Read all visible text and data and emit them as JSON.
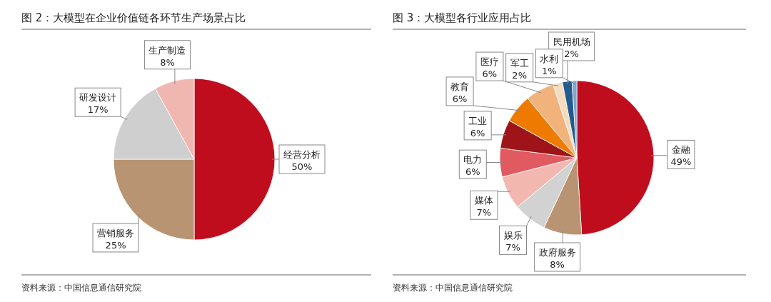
{
  "chart_data": [
    {
      "type": "pie",
      "title": "图 2：大模型在企业价值链各环节生产场景占比",
      "categories": [
        "经营分析",
        "营销服务",
        "研发设计",
        "生产制造"
      ],
      "values": [
        50,
        25,
        17,
        8
      ],
      "value_labels": [
        "50%",
        "25%",
        "17%",
        "8%"
      ],
      "colors": [
        "#c00d1e",
        "#b89472",
        "#cfcfcf",
        "#f0b7b0"
      ],
      "annotations": [
        "资料来源：中国信息通信研究院"
      ]
    },
    {
      "type": "pie",
      "title": "图 3：大模型各行业应用占比",
      "categories": [
        "金融",
        "政府服务",
        "娱乐",
        "媒体",
        "电力",
        "工业",
        "教育",
        "医疗",
        "军工",
        "民用机场",
        "水利"
      ],
      "values": [
        49,
        8,
        7,
        7,
        6,
        6,
        6,
        6,
        2,
        2,
        1
      ],
      "value_labels": [
        "49%",
        "8%",
        "7%",
        "7%",
        "6%",
        "6%",
        "6%",
        "6%",
        "2%",
        "2%",
        "1%"
      ],
      "colors": [
        "#c00d1e",
        "#b89472",
        "#d2d2d2",
        "#f2b8b0",
        "#e05a60",
        "#9e1418",
        "#ee7a00",
        "#f2b27c",
        "#f4dcc0",
        "#245a8c",
        "#7fa6cc"
      ],
      "annotations": [
        "资料来源：中国信息通信研究院"
      ]
    }
  ]
}
